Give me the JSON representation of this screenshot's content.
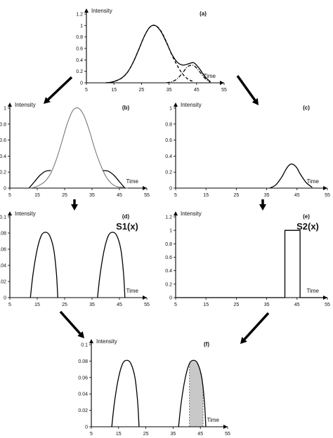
{
  "chart_data": [
    {
      "id": "a",
      "type": "line",
      "panel_label": "(a)",
      "xlabel": "Time",
      "ylabel": "Intensity",
      "xticks": [
        5,
        15,
        25,
        35,
        45,
        55
      ],
      "yticks": [
        "0",
        "0.2",
        "0.4",
        "0.6",
        "0.8",
        "1",
        "1.2"
      ],
      "xlim": [
        5,
        55
      ],
      "ylim": [
        0,
        1.2
      ],
      "series": [
        {
          "style": "solid",
          "x": [
            12,
            14,
            16,
            18,
            20,
            22,
            24,
            26,
            28,
            30,
            32,
            34,
            36,
            38,
            40,
            42,
            44,
            46,
            48,
            50
          ],
          "y": [
            0.0,
            0.01,
            0.04,
            0.09,
            0.19,
            0.36,
            0.58,
            0.81,
            0.97,
            1.0,
            0.9,
            0.71,
            0.5,
            0.36,
            0.31,
            0.33,
            0.35,
            0.25,
            0.11,
            0.02
          ]
        },
        {
          "style": "dashed",
          "x": [
            12,
            14,
            16,
            18,
            20,
            22,
            24,
            26,
            28,
            30,
            32,
            34,
            36,
            38,
            40,
            42,
            44
          ],
          "y": [
            0.0,
            0.01,
            0.04,
            0.09,
            0.19,
            0.36,
            0.58,
            0.81,
            0.97,
            1.0,
            0.91,
            0.72,
            0.49,
            0.3,
            0.15,
            0.06,
            0.02
          ]
        },
        {
          "style": "dashdot",
          "x": [
            34,
            36,
            38,
            40,
            42,
            44,
            46,
            48,
            50
          ],
          "y": [
            0.0,
            0.02,
            0.07,
            0.18,
            0.29,
            0.3,
            0.2,
            0.08,
            0.01
          ]
        }
      ]
    },
    {
      "id": "b",
      "type": "line",
      "panel_label": "(b)",
      "xlabel": "Time",
      "ylabel": "Intensity",
      "xticks": [
        5,
        15,
        25,
        35,
        45,
        55
      ],
      "yticks": [
        "0",
        "0.2",
        "0.4",
        "0.6",
        "0.8",
        "1"
      ],
      "xlim": [
        5,
        55
      ],
      "ylim": [
        0,
        1
      ],
      "series": [
        {
          "style": "solid-gray",
          "x": [
            12,
            14,
            16,
            18,
            20,
            22,
            24,
            26,
            28,
            30,
            32,
            34,
            36,
            38,
            40,
            42,
            44,
            46,
            48
          ],
          "y": [
            0.0,
            0.01,
            0.04,
            0.09,
            0.19,
            0.36,
            0.58,
            0.81,
            0.97,
            1.0,
            0.91,
            0.72,
            0.49,
            0.3,
            0.15,
            0.06,
            0.02,
            0.01,
            0.0
          ]
        },
        {
          "style": "solid",
          "x": [
            12,
            14,
            16,
            18,
            20
          ],
          "y": [
            0.0,
            0.08,
            0.16,
            0.21,
            0.22
          ]
        },
        {
          "style": "solid",
          "x": [
            39,
            41,
            43,
            45,
            47
          ],
          "y": [
            0.22,
            0.21,
            0.16,
            0.08,
            0.0
          ]
        }
      ]
    },
    {
      "id": "c",
      "type": "line",
      "panel_label": "(c)",
      "xlabel": "Time",
      "ylabel": "Intensity",
      "xticks": [
        5,
        15,
        25,
        35,
        45,
        55
      ],
      "yticks": [
        "0",
        "0.2",
        "0.4",
        "0.6",
        "0.8",
        "1"
      ],
      "xlim": [
        5,
        55
      ],
      "ylim": [
        0,
        1
      ],
      "series": [
        {
          "style": "solid",
          "x": [
            36,
            38,
            40,
            41,
            42,
            43,
            44,
            45,
            46,
            48,
            50
          ],
          "y": [
            0.0,
            0.04,
            0.14,
            0.21,
            0.27,
            0.3,
            0.29,
            0.25,
            0.18,
            0.07,
            0.01
          ]
        }
      ]
    },
    {
      "id": "d",
      "type": "line",
      "panel_label": "(d)",
      "series_label": "S1(x)",
      "xlabel": "Time",
      "ylabel": "Intensity",
      "xticks": [
        5,
        15,
        25,
        35,
        45,
        55
      ],
      "yticks": [
        "0",
        "0.02",
        "0.04",
        "0.06",
        "0.08",
        "0.1"
      ],
      "xlim": [
        5,
        55
      ],
      "ylim": [
        0,
        0.1
      ],
      "series": [
        {
          "style": "solid",
          "x": [
            12.5,
            13.5,
            15,
            16.5,
            18,
            19.5,
            21,
            22,
            22.5
          ],
          "y": [
            0.0,
            0.03,
            0.06,
            0.077,
            0.081,
            0.077,
            0.06,
            0.03,
            0.0
          ]
        },
        {
          "style": "solid",
          "x": [
            37,
            38,
            39.5,
            41,
            42.5,
            44,
            45.5,
            46.5,
            47
          ],
          "y": [
            0.0,
            0.03,
            0.06,
            0.077,
            0.081,
            0.077,
            0.06,
            0.03,
            0.0
          ]
        }
      ]
    },
    {
      "id": "e",
      "type": "line",
      "panel_label": "(e)",
      "series_label": "S2(x)",
      "xlabel": "Time",
      "ylabel": "Intensity",
      "xticks": [
        5,
        15,
        25,
        35,
        45,
        55
      ],
      "yticks": [
        "0",
        "0.2",
        "0.4",
        "0.6",
        "0.8",
        "1",
        "1.2"
      ],
      "xlim": [
        5,
        55
      ],
      "ylim": [
        0,
        1.2
      ],
      "series": [
        {
          "style": "solid",
          "x": [
            5,
            41,
            41,
            46,
            46,
            55
          ],
          "y": [
            0,
            0,
            1,
            1,
            0,
            0
          ]
        }
      ]
    },
    {
      "id": "f",
      "type": "area",
      "panel_label": "(f)",
      "xlabel": "Time",
      "ylabel": "Intensity",
      "xticks": [
        5,
        15,
        25,
        35,
        45,
        55
      ],
      "yticks": [
        "0",
        "0.02",
        "0.04",
        "0.06",
        "0.08",
        "0.1"
      ],
      "xlim": [
        5,
        55
      ],
      "ylim": [
        0,
        0.1
      ],
      "series": [
        {
          "style": "solid",
          "x": [
            12.5,
            13.5,
            15,
            16.5,
            18,
            19.5,
            21,
            22,
            22.5
          ],
          "y": [
            0.0,
            0.03,
            0.06,
            0.077,
            0.081,
            0.077,
            0.06,
            0.03,
            0.0
          ]
        },
        {
          "style": "filled",
          "x": [
            37,
            38,
            39.5,
            41,
            42.5,
            44,
            45.5,
            46.5,
            47
          ],
          "y": [
            0.0,
            0.03,
            0.06,
            0.077,
            0.081,
            0.077,
            0.06,
            0.03,
            0.0
          ]
        }
      ],
      "shaded_range": [
        41,
        46
      ],
      "fill_color": "#c8c8c8"
    }
  ],
  "arrows": [
    {
      "from": "a",
      "to": "b"
    },
    {
      "from": "a",
      "to": "c"
    },
    {
      "from": "b",
      "to": "d"
    },
    {
      "from": "c",
      "to": "e"
    },
    {
      "from": "d",
      "to": "f"
    },
    {
      "from": "e",
      "to": "f"
    }
  ]
}
